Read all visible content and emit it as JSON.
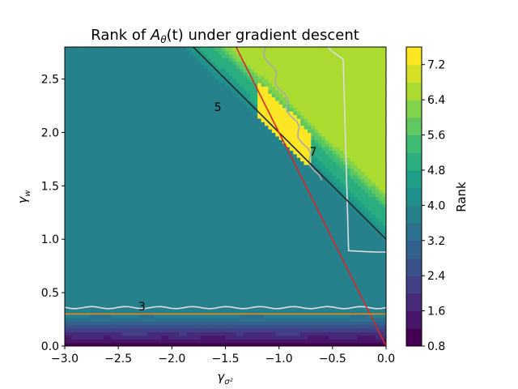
{
  "chart_data": {
    "type": "heatmap",
    "title_prefix": "Rank of ",
    "title_symbol": "A",
    "title_symbol_sub": "θ",
    "title_suffix": "(t) under gradient descent",
    "xlabel_symbol": "γ",
    "xlabel_sub": "σ²",
    "ylabel_symbol": "γ",
    "ylabel_sub": "w",
    "xlim": [
      -3.0,
      0.0
    ],
    "ylim": [
      0.0,
      2.8
    ],
    "x_ticks": [
      -3.0,
      -2.5,
      -2.0,
      -1.5,
      -1.0,
      -0.5,
      0.0
    ],
    "x_tick_labels": [
      "−3.0",
      "−2.5",
      "−2.0",
      "−1.5",
      "−1.0",
      "−0.5",
      "0.0"
    ],
    "y_ticks": [
      0.0,
      0.5,
      1.0,
      1.5,
      2.0,
      2.5
    ],
    "y_tick_labels": [
      "0.0",
      "0.5",
      "1.0",
      "1.5",
      "2.0",
      "2.5"
    ],
    "colorbar": {
      "label": "Rank",
      "range": [
        0.8,
        7.6
      ],
      "ticks": [
        0.8,
        1.6,
        2.4,
        3.2,
        4.0,
        4.8,
        5.6,
        6.4,
        7.2
      ],
      "tick_labels": [
        "0.8",
        "1.6",
        "2.4",
        "3.2",
        "4.0",
        "4.8",
        "5.6",
        "6.4",
        "7.2"
      ],
      "level_step": 0.4,
      "colormap": "viridis"
    },
    "contour_labels": [
      {
        "text": "5",
        "x": -1.57,
        "y": 2.24,
        "color": "#ffffff"
      },
      {
        "text": "3",
        "x": -2.28,
        "y": 0.37,
        "color": "#ffffff"
      },
      {
        "text": "7",
        "x": -0.68,
        "y": 1.82,
        "color": "#aaaaaa"
      }
    ],
    "lines": [
      {
        "name": "",
        "color": "#222222",
        "points": [
          [
            -1.8,
            2.8
          ],
          [
            0.0,
            1.0
          ]
        ]
      },
      {
        "name": "",
        "color": "#d62728",
        "points": [
          [
            -1.4,
            2.8
          ],
          [
            0.0,
            0.0
          ]
        ]
      },
      {
        "name": "",
        "color": "#e08a1e",
        "points": [
          [
            -3.0,
            0.3
          ],
          [
            0.0,
            0.3
          ]
        ]
      }
    ]
  }
}
